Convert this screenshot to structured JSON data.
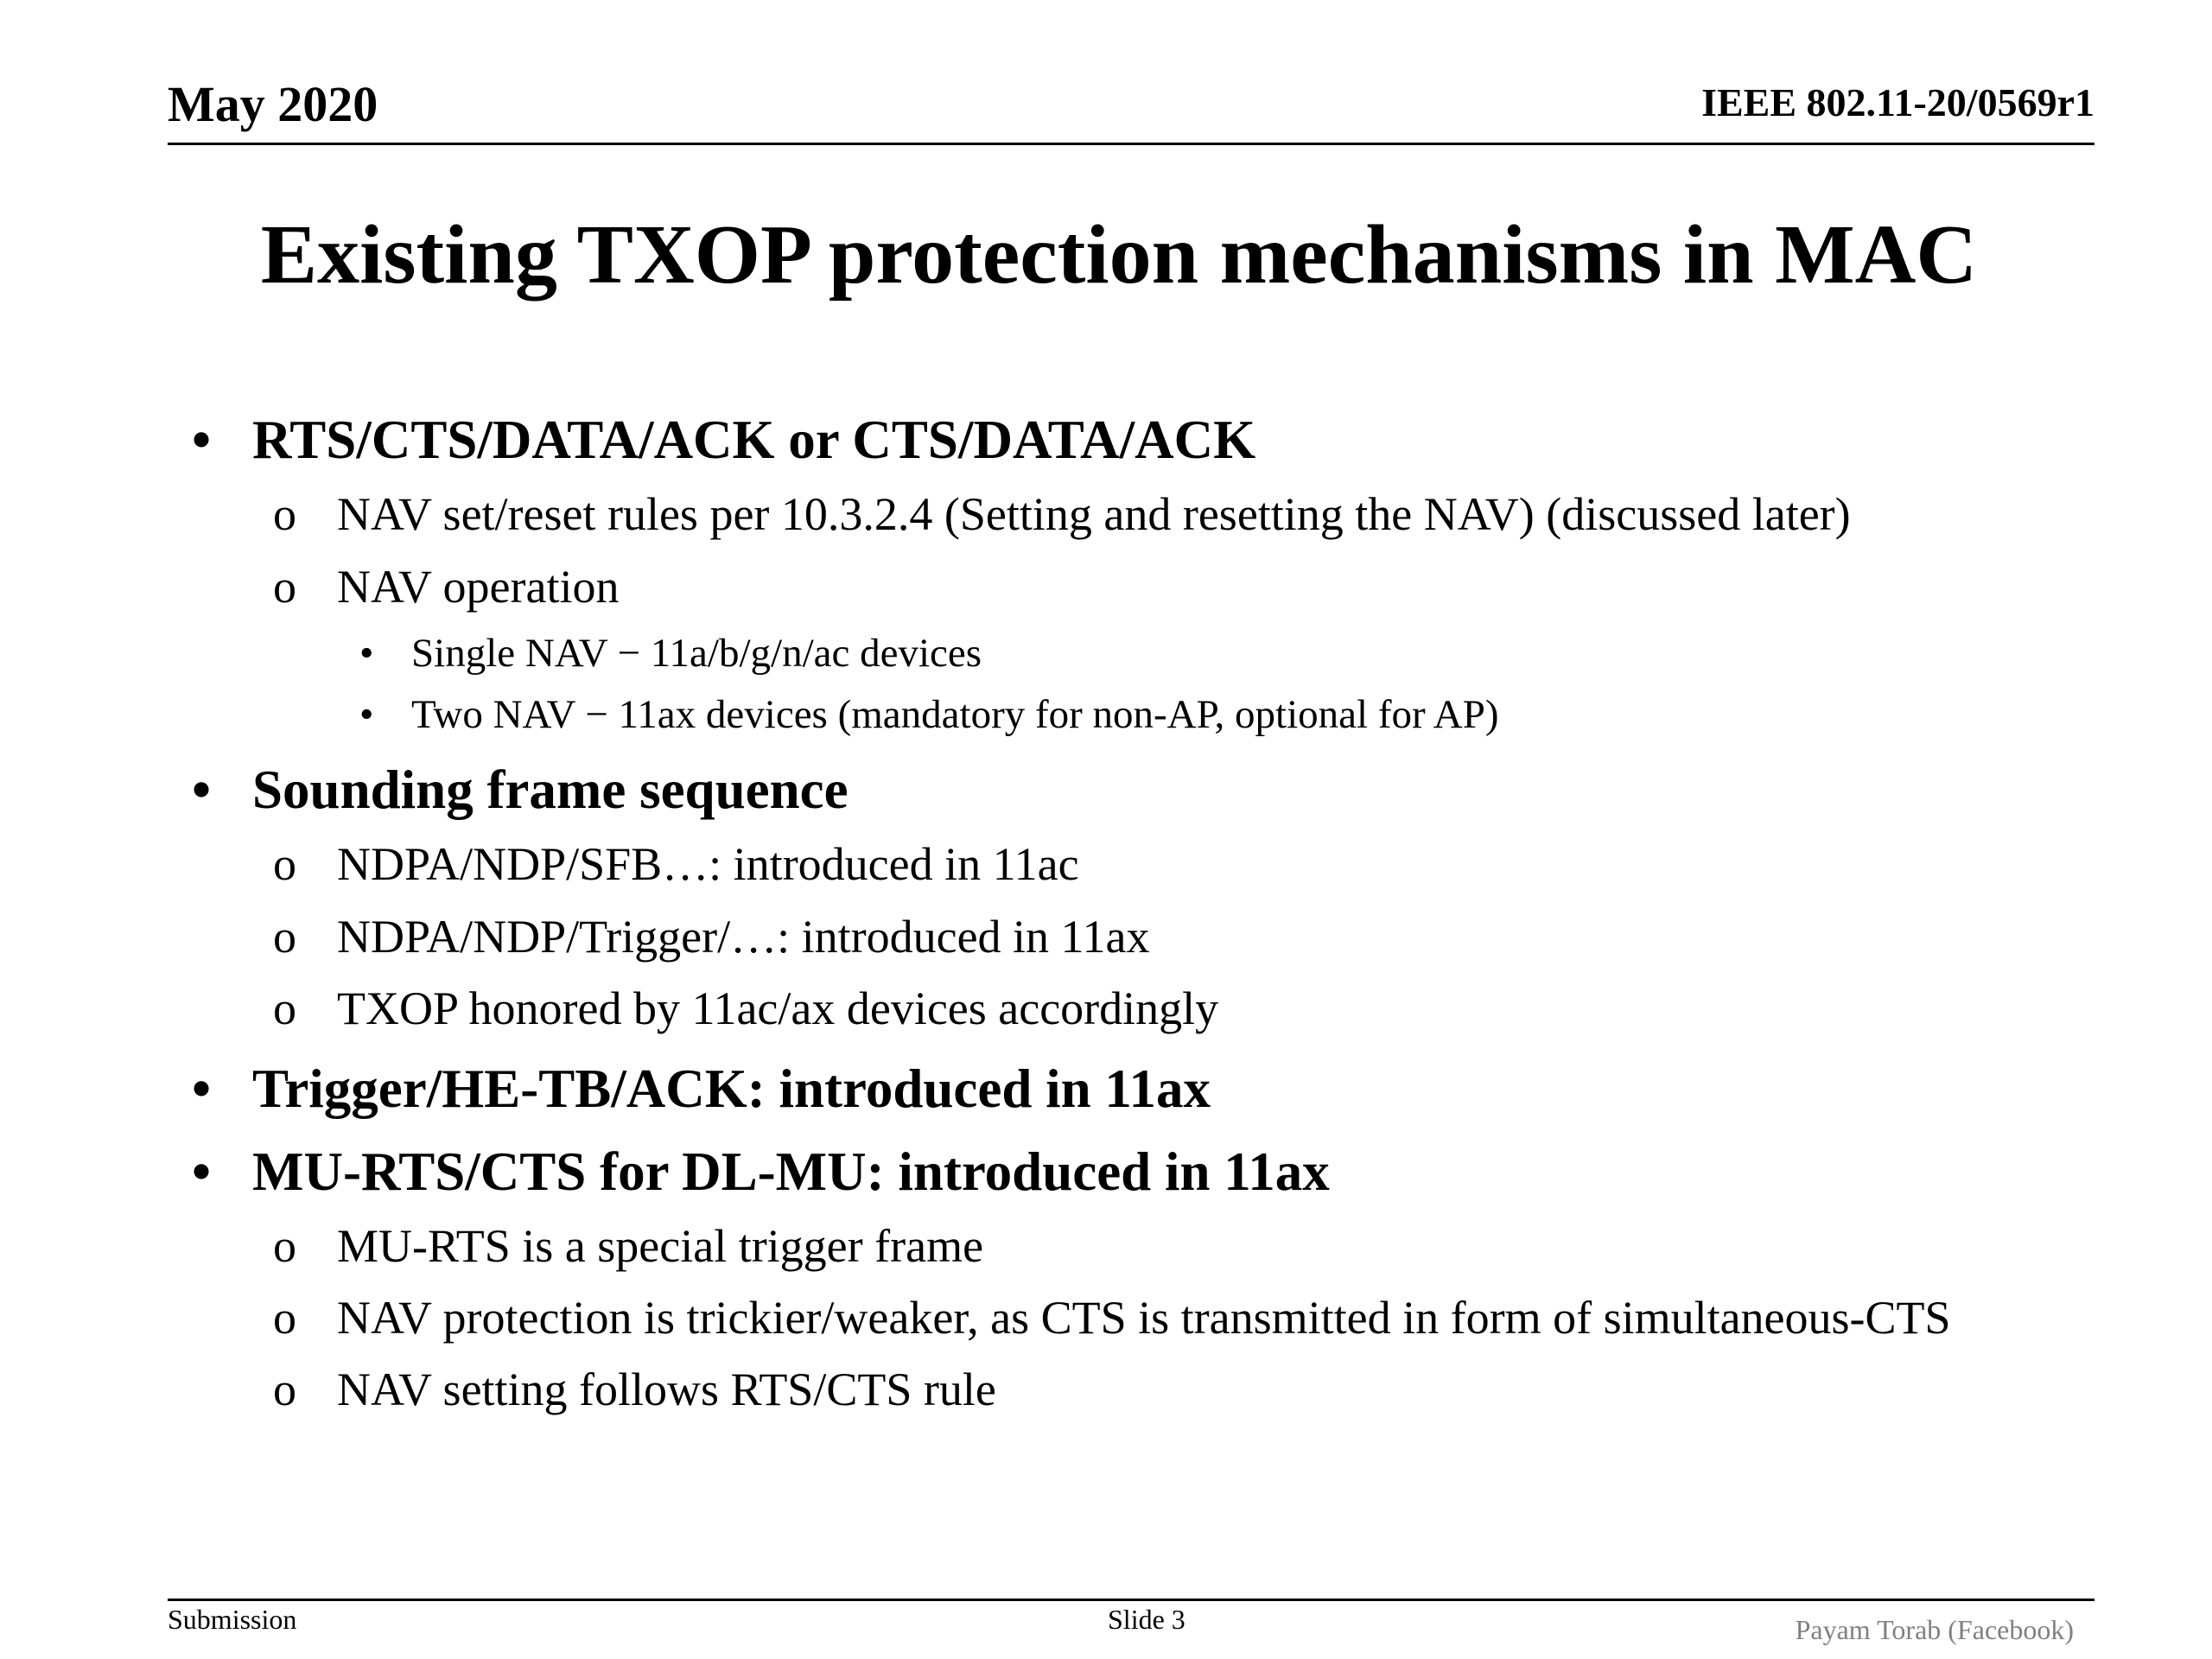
{
  "header": {
    "date": "May 2020",
    "doc_id": "IEEE 802.11-20/0569r1"
  },
  "title": "Existing TXOP protection mechanisms in MAC",
  "bullets": [
    {
      "level": 1,
      "marker": "•",
      "text": "RTS/CTS/DATA/ACK or CTS/DATA/ACK"
    },
    {
      "level": 2,
      "marker": "o",
      "text": "NAV set/reset rules per 10.3.2.4 (Setting and resetting the NAV) (discussed later)"
    },
    {
      "level": 2,
      "marker": "o",
      "text": "NAV operation"
    },
    {
      "level": 3,
      "marker": "•",
      "text": "Single NAV − 11a/b/g/n/ac devices"
    },
    {
      "level": 3,
      "marker": "•",
      "text": "Two NAV − 11ax devices (mandatory for non-AP, optional for AP)"
    },
    {
      "level": 1,
      "marker": "•",
      "text": "Sounding frame sequence"
    },
    {
      "level": 2,
      "marker": "o",
      "text": "NDPA/NDP/SFB…: introduced in 11ac"
    },
    {
      "level": 2,
      "marker": "o",
      "text": "NDPA/NDP/Trigger/…: introduced in 11ax"
    },
    {
      "level": 2,
      "marker": "o",
      "text": "TXOP honored by 11ac/ax devices accordingly"
    },
    {
      "level": 1,
      "marker": "•",
      "text": "Trigger/HE-TB/ACK: introduced in 11ax"
    },
    {
      "level": 1,
      "marker": "•",
      "text": "MU-RTS/CTS for DL-MU: introduced in 11ax"
    },
    {
      "level": 2,
      "marker": "o",
      "text": "MU-RTS is a special trigger frame"
    },
    {
      "level": 2,
      "marker": "o",
      "text": "NAV protection is trickier/weaker, as CTS is transmitted in form of simultaneous-CTS"
    },
    {
      "level": 2,
      "marker": "o",
      "text": "NAV setting follows RTS/CTS rule"
    }
  ],
  "footer": {
    "left": "Submission",
    "center": "Slide 3",
    "right": "Payam Torab (Facebook)"
  }
}
